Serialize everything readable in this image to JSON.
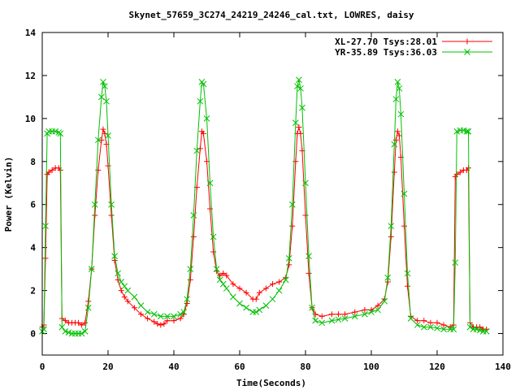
{
  "chart_data": {
    "type": "line",
    "title": "Skynet_57659_3C274_24219_24246_cal.txt, LOWRES, daisy",
    "xlabel": "Time(Seconds)",
    "ylabel": "Power (Kelvin)",
    "xlim": [
      0,
      140
    ],
    "ylim": [
      -1,
      14
    ],
    "xticks": [
      0,
      20,
      40,
      60,
      80,
      100,
      120,
      140
    ],
    "yticks": [
      0,
      2,
      4,
      6,
      8,
      10,
      12,
      14
    ],
    "legend_position": "top-right",
    "series": [
      {
        "name": "XL-27.70 Tsys:28.01",
        "color": "#ff0000",
        "marker": "plus",
        "points": [
          [
            0,
            0.3
          ],
          [
            0.5,
            0.4
          ],
          [
            1,
            3.5
          ],
          [
            1.5,
            7.4
          ],
          [
            2,
            7.5
          ],
          [
            3,
            7.6
          ],
          [
            4,
            7.7
          ],
          [
            5,
            7.7
          ],
          [
            5.5,
            7.6
          ],
          [
            6,
            0.7
          ],
          [
            7,
            0.6
          ],
          [
            8,
            0.5
          ],
          [
            9,
            0.5
          ],
          [
            10,
            0.5
          ],
          [
            11,
            0.5
          ],
          [
            12,
            0.4
          ],
          [
            13,
            0.5
          ],
          [
            14,
            1.5
          ],
          [
            15,
            3.0
          ],
          [
            16,
            5.5
          ],
          [
            17,
            7.6
          ],
          [
            18,
            9.0
          ],
          [
            18.5,
            9.5
          ],
          [
            19,
            9.3
          ],
          [
            19.5,
            8.8
          ],
          [
            20,
            7.8
          ],
          [
            21,
            5.5
          ],
          [
            22,
            3.4
          ],
          [
            23,
            2.5
          ],
          [
            24,
            2.0
          ],
          [
            25,
            1.7
          ],
          [
            26,
            1.5
          ],
          [
            28,
            1.2
          ],
          [
            30,
            0.9
          ],
          [
            32,
            0.7
          ],
          [
            34,
            0.55
          ],
          [
            35,
            0.45
          ],
          [
            36,
            0.4
          ],
          [
            37,
            0.45
          ],
          [
            38,
            0.6
          ],
          [
            40,
            0.6
          ],
          [
            42,
            0.7
          ],
          [
            43,
            0.9
          ],
          [
            44,
            1.4
          ],
          [
            45,
            2.5
          ],
          [
            46,
            4.5
          ],
          [
            47,
            6.8
          ],
          [
            48,
            8.6
          ],
          [
            48.5,
            9.4
          ],
          [
            49,
            9.3
          ],
          [
            50,
            8.0
          ],
          [
            51,
            5.8
          ],
          [
            52,
            3.8
          ],
          [
            53,
            2.9
          ],
          [
            54,
            2.7
          ],
          [
            55,
            2.8
          ],
          [
            56,
            2.7
          ],
          [
            58,
            2.3
          ],
          [
            60,
            2.1
          ],
          [
            62,
            1.9
          ],
          [
            64,
            1.6
          ],
          [
            65,
            1.6
          ],
          [
            66,
            1.9
          ],
          [
            68,
            2.1
          ],
          [
            70,
            2.3
          ],
          [
            72,
            2.4
          ],
          [
            74,
            2.6
          ],
          [
            75,
            3.2
          ],
          [
            76,
            5.0
          ],
          [
            77,
            8.0
          ],
          [
            77.5,
            9.3
          ],
          [
            78,
            9.6
          ],
          [
            78.5,
            9.3
          ],
          [
            79,
            8.5
          ],
          [
            80,
            5.5
          ],
          [
            81,
            2.8
          ],
          [
            82,
            1.2
          ],
          [
            83,
            0.9
          ],
          [
            85,
            0.8
          ],
          [
            88,
            0.9
          ],
          [
            90,
            0.9
          ],
          [
            92,
            0.9
          ],
          [
            95,
            1.0
          ],
          [
            98,
            1.1
          ],
          [
            100,
            1.1
          ],
          [
            102,
            1.3
          ],
          [
            104,
            1.6
          ],
          [
            105,
            2.4
          ],
          [
            106,
            4.5
          ],
          [
            107,
            7.5
          ],
          [
            107.5,
            9.0
          ],
          [
            108,
            9.4
          ],
          [
            108.5,
            9.2
          ],
          [
            109,
            8.2
          ],
          [
            110,
            5.0
          ],
          [
            111,
            2.2
          ],
          [
            112,
            0.8
          ],
          [
            114,
            0.6
          ],
          [
            116,
            0.6
          ],
          [
            118,
            0.5
          ],
          [
            120,
            0.5
          ],
          [
            122,
            0.4
          ],
          [
            124,
            0.3
          ],
          [
            125,
            0.4
          ],
          [
            125.5,
            7.3
          ],
          [
            126,
            7.4
          ],
          [
            127,
            7.5
          ],
          [
            128,
            7.6
          ],
          [
            129,
            7.6
          ],
          [
            129.5,
            7.7
          ],
          [
            130,
            0.5
          ],
          [
            131,
            0.3
          ],
          [
            132,
            0.3
          ],
          [
            133,
            0.3
          ],
          [
            134,
            0.2
          ],
          [
            135,
            0.2
          ]
        ]
      },
      {
        "name": "YR-35.89 Tsys:36.03",
        "color": "#00c000",
        "marker": "x",
        "points": [
          [
            0,
            0.1
          ],
          [
            0.5,
            0.2
          ],
          [
            1,
            5.0
          ],
          [
            1.5,
            9.3
          ],
          [
            2,
            9.4
          ],
          [
            3,
            9.4
          ],
          [
            4,
            9.4
          ],
          [
            5,
            9.35
          ],
          [
            5.5,
            9.3
          ],
          [
            6,
            0.3
          ],
          [
            7,
            0.1
          ],
          [
            8,
            0.05
          ],
          [
            9,
            0.0
          ],
          [
            10,
            0.0
          ],
          [
            11,
            0.0
          ],
          [
            12,
            0.0
          ],
          [
            13,
            0.1
          ],
          [
            14,
            1.2
          ],
          [
            15,
            3.0
          ],
          [
            16,
            6.0
          ],
          [
            17,
            9.0
          ],
          [
            18,
            11.0
          ],
          [
            18.5,
            11.7
          ],
          [
            19,
            11.5
          ],
          [
            19.5,
            10.8
          ],
          [
            20,
            9.2
          ],
          [
            21,
            6.0
          ],
          [
            22,
            3.6
          ],
          [
            23,
            2.8
          ],
          [
            24,
            2.4
          ],
          [
            25,
            2.2
          ],
          [
            26,
            2.0
          ],
          [
            28,
            1.7
          ],
          [
            30,
            1.3
          ],
          [
            32,
            1.0
          ],
          [
            34,
            0.9
          ],
          [
            36,
            0.8
          ],
          [
            38,
            0.8
          ],
          [
            40,
            0.8
          ],
          [
            42,
            0.9
          ],
          [
            43,
            1.0
          ],
          [
            44,
            1.6
          ],
          [
            45,
            3.0
          ],
          [
            46,
            5.5
          ],
          [
            47,
            8.5
          ],
          [
            48,
            10.8
          ],
          [
            48.5,
            11.7
          ],
          [
            49,
            11.6
          ],
          [
            50,
            10.0
          ],
          [
            51,
            7.0
          ],
          [
            52,
            4.5
          ],
          [
            53,
            3.0
          ],
          [
            54,
            2.5
          ],
          [
            55,
            2.3
          ],
          [
            56,
            2.1
          ],
          [
            58,
            1.7
          ],
          [
            60,
            1.4
          ],
          [
            62,
            1.2
          ],
          [
            64,
            1.0
          ],
          [
            65,
            1.0
          ],
          [
            66,
            1.1
          ],
          [
            68,
            1.3
          ],
          [
            70,
            1.6
          ],
          [
            72,
            2.0
          ],
          [
            74,
            2.5
          ],
          [
            75,
            3.5
          ],
          [
            76,
            6.0
          ],
          [
            77,
            9.8
          ],
          [
            77.5,
            11.5
          ],
          [
            78,
            11.8
          ],
          [
            78.5,
            11.4
          ],
          [
            79,
            10.5
          ],
          [
            80,
            7.0
          ],
          [
            81,
            3.6
          ],
          [
            82,
            1.2
          ],
          [
            83,
            0.6
          ],
          [
            85,
            0.5
          ],
          [
            88,
            0.6
          ],
          [
            90,
            0.65
          ],
          [
            92,
            0.7
          ],
          [
            95,
            0.8
          ],
          [
            98,
            0.9
          ],
          [
            100,
            1.0
          ],
          [
            102,
            1.1
          ],
          [
            104,
            1.5
          ],
          [
            105,
            2.6
          ],
          [
            106,
            5.0
          ],
          [
            107,
            8.8
          ],
          [
            107.5,
            10.9
          ],
          [
            108,
            11.7
          ],
          [
            108.5,
            11.4
          ],
          [
            109,
            10.2
          ],
          [
            110,
            6.5
          ],
          [
            111,
            2.8
          ],
          [
            112,
            0.7
          ],
          [
            114,
            0.4
          ],
          [
            116,
            0.3
          ],
          [
            118,
            0.3
          ],
          [
            120,
            0.25
          ],
          [
            122,
            0.2
          ],
          [
            124,
            0.2
          ],
          [
            125,
            0.2
          ],
          [
            125.5,
            3.3
          ],
          [
            126,
            9.4
          ],
          [
            127,
            9.45
          ],
          [
            128,
            9.45
          ],
          [
            129,
            9.4
          ],
          [
            129.5,
            9.4
          ],
          [
            130,
            0.3
          ],
          [
            131,
            0.2
          ],
          [
            132,
            0.2
          ],
          [
            133,
            0.15
          ],
          [
            134,
            0.1
          ],
          [
            135,
            0.1
          ]
        ]
      }
    ]
  }
}
